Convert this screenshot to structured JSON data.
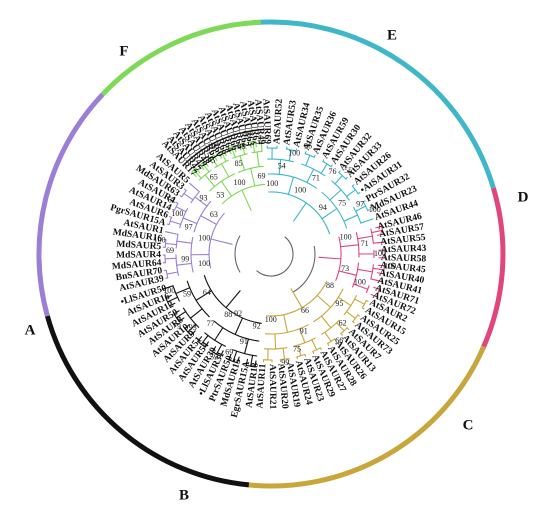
{
  "tree": {
    "clades": [
      {
        "id": "E",
        "color": "#3fb7c8",
        "leaves": [
          "AtSAUR69",
          "AtSAUR52",
          "AtSAUR53",
          "AtSAUR34",
          "AtSAUR35",
          "AtSAUR36",
          "AtSAUR59",
          "AtSAUR30",
          "AtSAUR32",
          "AtSAUR33",
          "AtSAUR26",
          "•AtSAUR31",
          "PtrSAUR32",
          "MdSAUR23",
          "AtSAUR44"
        ],
        "bootstrap": [
          "100",
          "54",
          "100",
          "96",
          "100",
          "71",
          "76",
          "55",
          "94",
          "75",
          "97",
          "100"
        ]
      },
      {
        "id": "D",
        "color": "#e0457b",
        "leaves": [
          "AtSAUR46",
          "AtSAUR57",
          "AtSAUR55",
          "AtSAUR43",
          "AtSAUR58",
          "AtSAUR45",
          "AtSAUR40",
          "AtSAUR41",
          "AtSAUR71",
          "AtSAUR72"
        ],
        "bootstrap": [
          "100",
          "71",
          "100",
          "100",
          "73",
          "100"
        ]
      },
      {
        "id": "C",
        "color": "#c8a63c",
        "leaves": [
          "AtSAUR2",
          "AtSAUR15",
          "AtSAUR25",
          "AtSAUR73",
          "AtSAUR7",
          "AtSAUR13",
          "AtSAUR26",
          "AtSAUR28",
          "AtSAUR27",
          "AtSAUR29",
          "AtSAUR23",
          "AtSAUR24",
          "AtSAUR19",
          "AtSAUR20",
          "AtSAUR21",
          "AtSAUR11"
        ],
        "bootstrap": [
          "88",
          "95",
          "62",
          "66",
          "66",
          "91",
          "75",
          "99",
          "100"
        ]
      },
      {
        "id": "B",
        "color": "#111111",
        "leaves": [
          "AtSAUR18",
          "EgrSAUR15A",
          "MdSAUR15",
          "PtrSAUR50",
          "•LlSAUR31",
          "AtSAUR39",
          "AtSAUR54",
          "AtSAUR51",
          "AtSAUR9",
          "AtSAUR10",
          "AtSAUR8",
          "AtSAUR50",
          "AtSAUR12",
          "AtSAUR16",
          "•LlSAUR50"
        ],
        "bootstrap": [
          "92",
          "91",
          "69",
          "59",
          "88",
          "77",
          "93",
          "79",
          "64",
          "59",
          "100"
        ]
      },
      {
        "id": "A",
        "color": "#9b7fd6",
        "leaves": [
          "AtSAUR39",
          "BnSAUR70",
          "MdSAUR64",
          "MdSAUR4",
          "MdSAUR5",
          "MdSAUR16",
          "AtSAUR1",
          "PgrSAUR15A",
          "AtSAUR6",
          "AtSAUR14",
          "AtSAUR4",
          "MdSAUR63",
          "AtSAUR3",
          "AtSAUR5"
        ],
        "bootstrap": [
          "100",
          "99",
          "69",
          "100",
          "100",
          "97",
          "100",
          "62",
          "63",
          "93"
        ]
      },
      {
        "id": "F",
        "color": "#7ed957",
        "leaves": [
          "AtSAUR17",
          "AtSAUR47",
          "AtSAUR42",
          "AtSAUR48",
          "AtSAUR56",
          "AtSAUR61",
          "AtSAUR60",
          "AtSAUR68",
          "AtSAUR64",
          "AtSAUR66",
          "AtSAUR65",
          "AtSAUR62",
          "AtSAUR63",
          "AtSAUR67",
          "AtSAUR49"
        ],
        "bootstrap": [
          "53",
          "65",
          "75",
          "100",
          "100",
          "85",
          "88",
          "59",
          "69"
        ]
      }
    ],
    "root_bootstrap": [
      "92"
    ]
  }
}
